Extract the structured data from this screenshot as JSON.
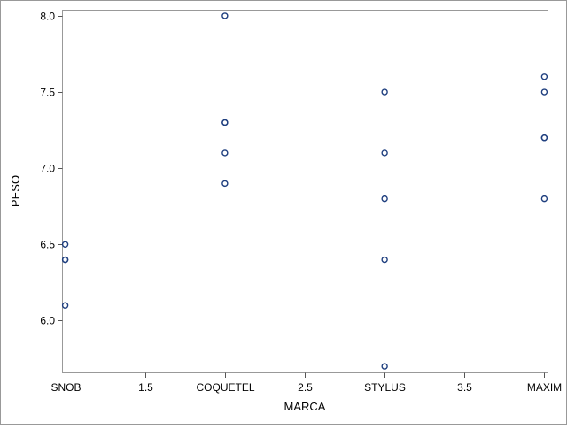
{
  "chart_data": {
    "type": "scatter",
    "xlabel": "MARCA",
    "ylabel": "PESO",
    "x_ticks": [
      {
        "value": 1.0,
        "label": "SNOB"
      },
      {
        "value": 1.5,
        "label": "1.5"
      },
      {
        "value": 2.0,
        "label": "COQUETEL"
      },
      {
        "value": 2.5,
        "label": "2.5"
      },
      {
        "value": 3.0,
        "label": "STYLUS"
      },
      {
        "value": 3.5,
        "label": "3.5"
      },
      {
        "value": 4.0,
        "label": "MAXIM"
      }
    ],
    "y_ticks": [
      {
        "value": 6.0,
        "label": "6.0"
      },
      {
        "value": 6.5,
        "label": "6.5"
      },
      {
        "value": 7.0,
        "label": "7.0"
      },
      {
        "value": 7.5,
        "label": "7.5"
      },
      {
        "value": 8.0,
        "label": "8.0"
      }
    ],
    "xlim": [
      0.98,
      4.02
    ],
    "ylim": [
      5.66,
      8.04
    ],
    "grid": false,
    "legend": "none",
    "marker_color": "#1f3f7f",
    "points": [
      {
        "x": 1,
        "y": 6.5
      },
      {
        "x": 1,
        "y": 6.4
      },
      {
        "x": 1,
        "y": 6.4
      },
      {
        "x": 1,
        "y": 6.1
      },
      {
        "x": 2,
        "y": 8.0
      },
      {
        "x": 2,
        "y": 7.3
      },
      {
        "x": 2,
        "y": 7.3
      },
      {
        "x": 2,
        "y": 7.1
      },
      {
        "x": 2,
        "y": 6.9
      },
      {
        "x": 3,
        "y": 7.5
      },
      {
        "x": 3,
        "y": 7.1
      },
      {
        "x": 3,
        "y": 6.8
      },
      {
        "x": 3,
        "y": 6.4
      },
      {
        "x": 3,
        "y": 5.7
      },
      {
        "x": 4,
        "y": 7.6
      },
      {
        "x": 4,
        "y": 7.5
      },
      {
        "x": 4,
        "y": 7.2
      },
      {
        "x": 4,
        "y": 7.2
      },
      {
        "x": 4,
        "y": 6.8
      }
    ]
  }
}
